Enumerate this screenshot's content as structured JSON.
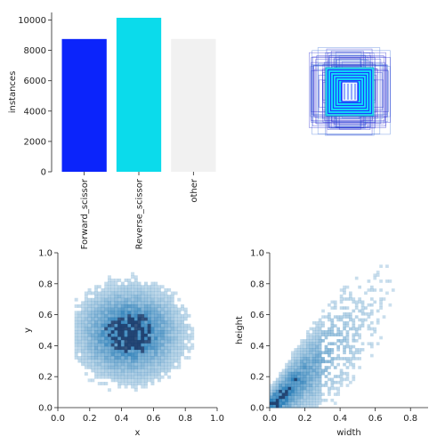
{
  "chart_data": [
    {
      "type": "bar",
      "panel": "class-counts",
      "categories": [
        "Forward_scissor",
        "Reverse_scissor",
        "other"
      ],
      "values": [
        8750,
        10150,
        8750
      ],
      "colors": [
        "#0b24fb",
        "#0bdbeb",
        "#f1f1f1"
      ],
      "xlabel": "",
      "ylabel": "instances",
      "yticks": [
        "0",
        "2000",
        "4000",
        "6000",
        "8000",
        "10000"
      ],
      "ylim": [
        0,
        10500
      ],
      "grid": false
    },
    {
      "type": "other",
      "panel": "box-outlines",
      "description_colors": [
        "#0000ff",
        "#00ffff"
      ],
      "ring_colors": [
        "#1a2cff",
        "#00e5ff"
      ]
    },
    {
      "type": "heatmap",
      "panel": "xy-histogram",
      "xlabel": "x",
      "ylabel": "y",
      "xlim": [
        0,
        1
      ],
      "ylim": [
        0,
        1
      ],
      "xticks": [
        "0.0",
        "0.2",
        "0.4",
        "0.6",
        "0.8",
        "1.0"
      ],
      "yticks": [
        "0.0",
        "0.2",
        "0.4",
        "0.6",
        "0.8",
        "1.0"
      ],
      "peak": {
        "x": 0.45,
        "y": 0.48
      },
      "spread": {
        "x": 0.18,
        "y": 0.16
      },
      "extent": {
        "x": [
          0.1,
          1.0
        ],
        "y": [
          0.05,
          0.95
        ]
      },
      "color": "#1f77b4"
    },
    {
      "type": "heatmap",
      "panel": "wh-histogram",
      "xlabel": "width",
      "ylabel": "height",
      "xlim": [
        0,
        0.9
      ],
      "ylim": [
        0,
        1
      ],
      "xticks": [
        "0.0",
        "0.2",
        "0.4",
        "0.6",
        "0.8"
      ],
      "yticks": [
        "0.0",
        "0.2",
        "0.4",
        "0.6",
        "0.8",
        "1.0"
      ],
      "peak": {
        "x": 0.1,
        "y": 0.12
      },
      "trend": "height roughly equals width",
      "extent": {
        "x": [
          0.02,
          0.85
        ],
        "y": [
          0.02,
          1.0
        ]
      },
      "color": "#1f77b4"
    }
  ]
}
